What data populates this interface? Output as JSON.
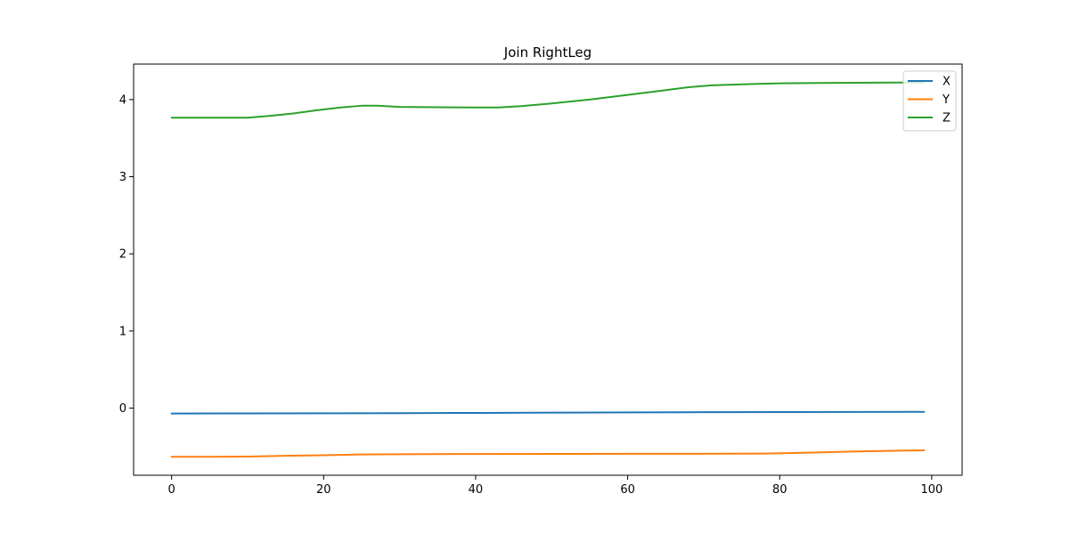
{
  "chart_data": {
    "type": "line",
    "title": "Join RightLeg",
    "xlabel": "",
    "ylabel": "",
    "xlim": [
      -5,
      104
    ],
    "ylim": [
      -0.87,
      4.46
    ],
    "xticks": [
      0,
      20,
      40,
      60,
      80,
      100
    ],
    "yticks": [
      0,
      1,
      2,
      3,
      4
    ],
    "grid": false,
    "legend_position": "top-right",
    "series": [
      {
        "name": "X",
        "color": "#1f77b4",
        "x": [
          0,
          10,
          20,
          30,
          40,
          50,
          60,
          70,
          80,
          90,
          99
        ],
        "y": [
          -0.07,
          -0.068,
          -0.067,
          -0.065,
          -0.062,
          -0.058,
          -0.055,
          -0.053,
          -0.051,
          -0.05,
          -0.048
        ]
      },
      {
        "name": "Y",
        "color": "#ff7f0e",
        "x": [
          0,
          5,
          10,
          15,
          20,
          25,
          30,
          40,
          50,
          60,
          70,
          78,
          85,
          90,
          95,
          99
        ],
        "y": [
          -0.63,
          -0.63,
          -0.628,
          -0.618,
          -0.61,
          -0.6,
          -0.597,
          -0.594,
          -0.593,
          -0.592,
          -0.591,
          -0.589,
          -0.575,
          -0.562,
          -0.552,
          -0.547
        ]
      },
      {
        "name": "Z",
        "color": "#2ca02c",
        "x": [
          0,
          5,
          10,
          13,
          16,
          19,
          22,
          25,
          27,
          30,
          35,
          40,
          43,
          46,
          50,
          55,
          60,
          64,
          68,
          71,
          76,
          80,
          85,
          90,
          95,
          99
        ],
        "y": [
          3.765,
          3.765,
          3.765,
          3.79,
          3.82,
          3.86,
          3.895,
          3.92,
          3.92,
          3.905,
          3.9,
          3.898,
          3.898,
          3.915,
          3.95,
          4.0,
          4.06,
          4.11,
          4.16,
          4.185,
          4.2,
          4.21,
          4.215,
          4.218,
          4.22,
          4.222
        ]
      }
    ]
  }
}
